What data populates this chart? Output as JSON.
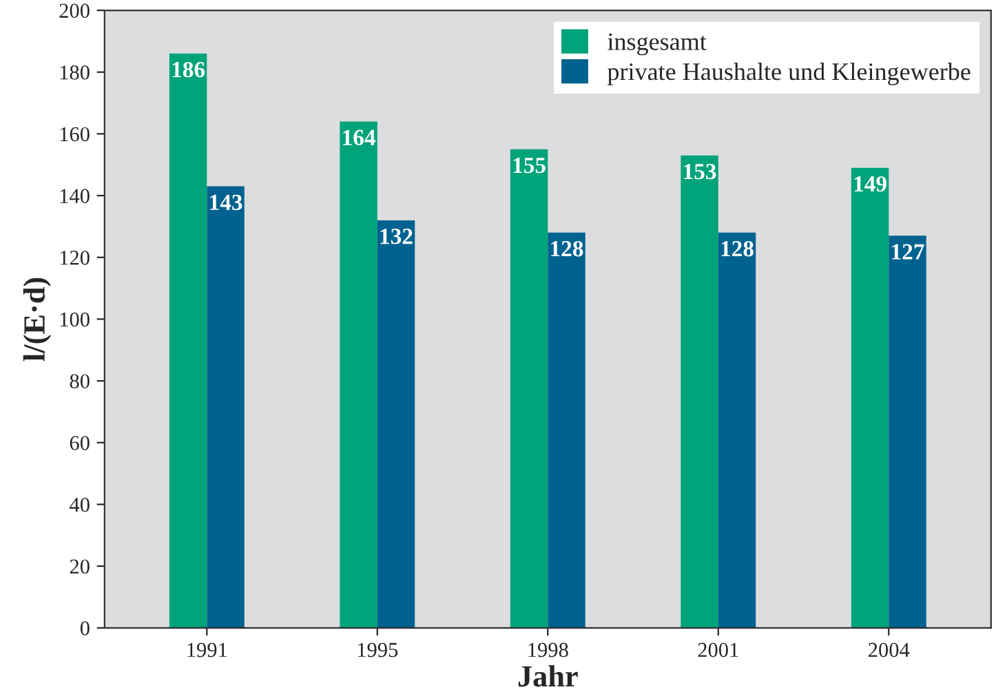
{
  "chart_data": {
    "type": "bar",
    "xlabel": "Jahr",
    "ylabel": "l/(E·d)",
    "categories": [
      "1991",
      "1995",
      "1998",
      "2001",
      "2004"
    ],
    "series": [
      {
        "name": "insgesamt",
        "color": "#00a37a",
        "values": [
          186,
          164,
          155,
          153,
          149
        ]
      },
      {
        "name": "private Haushalte und Kleingewerbe",
        "color": "#00628f",
        "values": [
          143,
          132,
          128,
          128,
          127
        ]
      }
    ],
    "ylim": [
      0,
      200
    ],
    "yticks": [
      0,
      20,
      40,
      60,
      80,
      100,
      120,
      140,
      160,
      180,
      200
    ],
    "data_labels": true,
    "grid": false,
    "legend": "top right"
  }
}
